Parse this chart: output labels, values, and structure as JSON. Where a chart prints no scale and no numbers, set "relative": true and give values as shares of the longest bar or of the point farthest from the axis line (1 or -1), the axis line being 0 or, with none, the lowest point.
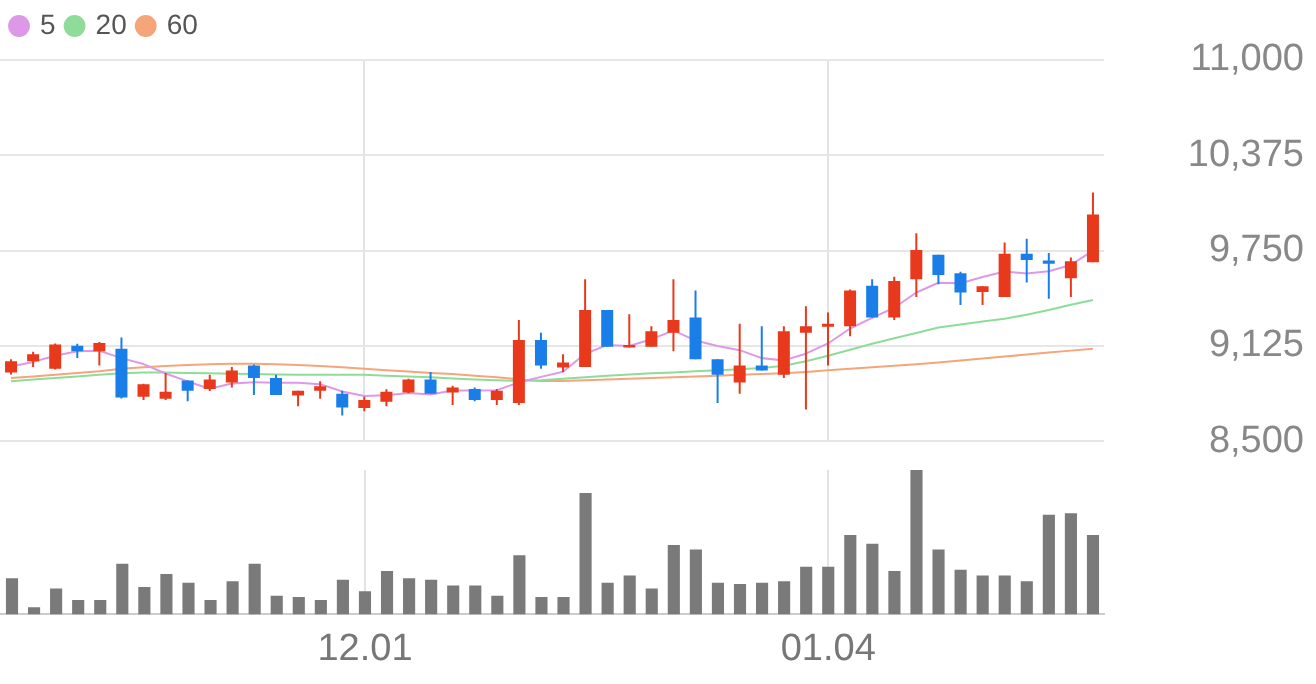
{
  "chart_data": [
    {
      "type": "candlestick",
      "categories": [
        null,
        null,
        null,
        null,
        null,
        null,
        null,
        null,
        null,
        null,
        null,
        null,
        null,
        null,
        null,
        null,
        "12.01",
        null,
        null,
        null,
        null,
        null,
        null,
        null,
        null,
        null,
        null,
        null,
        null,
        null,
        null,
        null,
        null,
        null,
        null,
        null,
        null,
        "01.04",
        null,
        null,
        null,
        null,
        null,
        null,
        null,
        null,
        null,
        null,
        null,
        null
      ],
      "ohlc": [
        [
          8950,
          9037,
          8938,
          9024
        ],
        [
          9024,
          9086,
          8987,
          9070
        ],
        [
          8975,
          9140,
          8970,
          9135
        ],
        [
          9126,
          9139,
          9045,
          9090
        ],
        [
          9090,
          9151,
          8996,
          9144
        ],
        [
          9107,
          9180,
          8780,
          8787
        ],
        [
          8791,
          8877,
          8770,
          8873
        ],
        [
          8778,
          8947,
          8770,
          8824
        ],
        [
          8898,
          8900,
          8762,
          8831
        ],
        [
          8843,
          8935,
          8830,
          8905
        ],
        [
          8885,
          8987,
          8852,
          8963
        ],
        [
          8996,
          9003,
          8803,
          8914
        ],
        [
          8914,
          8935,
          8803,
          8803
        ],
        [
          8799,
          8831,
          8729,
          8831
        ],
        [
          8831,
          8893,
          8778,
          8861
        ],
        [
          8812,
          8831,
          8668,
          8721
        ],
        [
          8717,
          8791,
          8696,
          8770
        ],
        [
          8759,
          8840,
          8729,
          8824
        ],
        [
          8820,
          8910,
          8815,
          8905
        ],
        [
          8905,
          8954,
          8812,
          8812
        ],
        [
          8820,
          8864,
          8738,
          8852
        ],
        [
          8843,
          8852,
          8762,
          8770
        ],
        [
          8770,
          8843,
          8738,
          8831
        ],
        [
          8750,
          9295,
          8738,
          9163
        ],
        [
          9163,
          9212,
          8975,
          8996
        ],
        [
          8984,
          9070,
          8954,
          9016
        ],
        [
          8987,
          9562,
          8987,
          9360
        ],
        [
          9360,
          9360,
          9119,
          9119
        ],
        [
          9114,
          9332,
          9114,
          9131
        ],
        [
          9119,
          9254,
          9119,
          9221
        ],
        [
          9212,
          9562,
          9090,
          9295
        ],
        [
          9311,
          9488,
          9037,
          9037
        ],
        [
          9037,
          9037,
          8750,
          8935
        ],
        [
          8885,
          9270,
          8812,
          8996
        ],
        [
          8996,
          9254,
          8963,
          8963
        ],
        [
          8935,
          9254,
          8914,
          9221
        ],
        [
          9212,
          9385,
          8708,
          9254
        ],
        [
          9250,
          9344,
          8996,
          9270
        ],
        [
          9254,
          9495,
          9189,
          9488
        ],
        [
          9520,
          9562,
          9311,
          9311
        ],
        [
          9311,
          9578,
          9295,
          9550
        ],
        [
          9562,
          9864,
          9446,
          9754
        ],
        [
          9722,
          9722,
          9529,
          9590
        ],
        [
          9602,
          9611,
          9393,
          9476
        ],
        [
          9479,
          9516,
          9393,
          9516
        ],
        [
          9446,
          9803,
          9446,
          9729
        ],
        [
          9729,
          9827,
          9541,
          9689
        ],
        [
          9685,
          9734,
          9434,
          9664
        ],
        [
          9569,
          9705,
          9446,
          9680
        ],
        [
          9673,
          10131,
          9673,
          9987
        ]
      ],
      "colors": [
        "#e8391c",
        "#e8391c",
        "#e8391c",
        "#1a7ee8",
        "#e8391c",
        "#1a7ee8",
        "#e8391c",
        "#e8391c",
        "#1a7ee8",
        "#e8391c",
        "#e8391c",
        "#1a7ee8",
        "#1a7ee8",
        "#e8391c",
        "#e8391c",
        "#1a7ee8",
        "#e8391c",
        "#e8391c",
        "#e8391c",
        "#1a7ee8",
        "#e8391c",
        "#1a7ee8",
        "#e8391c",
        "#e8391c",
        "#1a7ee8",
        "#e8391c",
        "#e8391c",
        "#1a7ee8",
        "#e8391c",
        "#e8391c",
        "#e8391c",
        "#1a7ee8",
        "#1a7ee8",
        "#e8391c",
        "#1a7ee8",
        "#e8391c",
        "#e8391c",
        "#e8391c",
        "#e8391c",
        "#1a7ee8",
        "#e8391c",
        "#e8391c",
        "#1a7ee8",
        "#1a7ee8",
        "#e8391c",
        "#e8391c",
        "#1a7ee8",
        "#1a7ee8",
        "#e8391c",
        "#e8391c"
      ],
      "series": [
        {
          "name": "5",
          "type": "line",
          "color": "#dd99e8",
          "values": [
            8990,
            9020,
            9060,
            9090,
            9093,
            9045,
            9006,
            8944,
            8892,
            8844,
            8879,
            8887,
            8883,
            8883,
            8874,
            8826,
            8797,
            8801,
            8816,
            8806,
            8833,
            8833,
            8834,
            8886,
            8922,
            8955,
            9073,
            9131,
            9124,
            9169,
            9225,
            9161,
            9124,
            9097,
            9045,
            9030,
            9074,
            9141,
            9239,
            9309,
            9375,
            9475,
            9539,
            9536,
            9577,
            9613,
            9600,
            9615,
            9656,
            9750
          ]
        },
        {
          "name": "20",
          "type": "line",
          "color": "#8fdc9a",
          "values": [
            8893,
            8905,
            8915,
            8925,
            8935,
            8945,
            8950,
            8950,
            8948,
            8945,
            8942,
            8940,
            8938,
            8936,
            8935,
            8935,
            8935,
            8930,
            8925,
            8920,
            8912,
            8905,
            8900,
            8895,
            8900,
            8910,
            8920,
            8930,
            8938,
            8945,
            8950,
            8958,
            8965,
            8972,
            8980,
            8995,
            9024,
            9060,
            9100,
            9139,
            9175,
            9210,
            9246,
            9265,
            9285,
            9303,
            9330,
            9360,
            9395,
            9426
          ]
        },
        {
          "name": "60",
          "type": "line",
          "color": "#f5a57a",
          "values": [
            8914,
            8925,
            8936,
            8947,
            8958,
            8975,
            8985,
            8993,
            9000,
            9005,
            9008,
            9008,
            9005,
            9000,
            8993,
            8985,
            8975,
            8966,
            8957,
            8948,
            8940,
            8930,
            8920,
            8905,
            8895,
            8895,
            8900,
            8905,
            8910,
            8915,
            8920,
            8925,
            8930,
            8935,
            8940,
            8945,
            8954,
            8965,
            8975,
            8985,
            8995,
            9005,
            9016,
            9030,
            9043,
            9055,
            9068,
            9081,
            9094,
            9107
          ]
        }
      ],
      "ylim": [
        8500,
        11000
      ],
      "yticks": [
        {
          "value": 8500,
          "label": "8,500"
        },
        {
          "value": 9125,
          "label": "9,125"
        },
        {
          "value": 9750,
          "label": "9,750"
        },
        {
          "value": 10375,
          "label": "10,375"
        },
        {
          "value": 11000,
          "label": "11,000"
        }
      ],
      "grid": true,
      "legend": "top left",
      "tick_labels": "y"
    },
    {
      "type": "bar",
      "relative": true,
      "categories": [
        null,
        null,
        null,
        null,
        null,
        null,
        null,
        null,
        null,
        null,
        null,
        null,
        null,
        null,
        null,
        null,
        "12.01",
        null,
        null,
        null,
        null,
        null,
        null,
        null,
        null,
        null,
        null,
        null,
        null,
        null,
        null,
        null,
        null,
        null,
        null,
        null,
        null,
        "01.04",
        null,
        null,
        null,
        null,
        null,
        null,
        null,
        null,
        null,
        null,
        null,
        null
      ],
      "values": [
        0.25,
        0.05,
        0.18,
        0.1,
        0.1,
        0.35,
        0.19,
        0.28,
        0.22,
        0.1,
        0.23,
        0.35,
        0.13,
        0.12,
        0.1,
        0.24,
        0.16,
        0.3,
        0.25,
        0.24,
        0.2,
        0.2,
        0.13,
        0.41,
        0.12,
        0.12,
        0.84,
        0.22,
        0.27,
        0.18,
        0.48,
        0.45,
        0.22,
        0.21,
        0.22,
        0.23,
        0.33,
        0.33,
        0.55,
        0.49,
        0.3,
        1,
        0.45,
        0.31,
        0.27,
        0.27,
        0.23,
        0.69,
        0.7,
        0.55
      ],
      "color": "#7a7a7a",
      "grid": "x",
      "tick_labels": "x"
    }
  ]
}
